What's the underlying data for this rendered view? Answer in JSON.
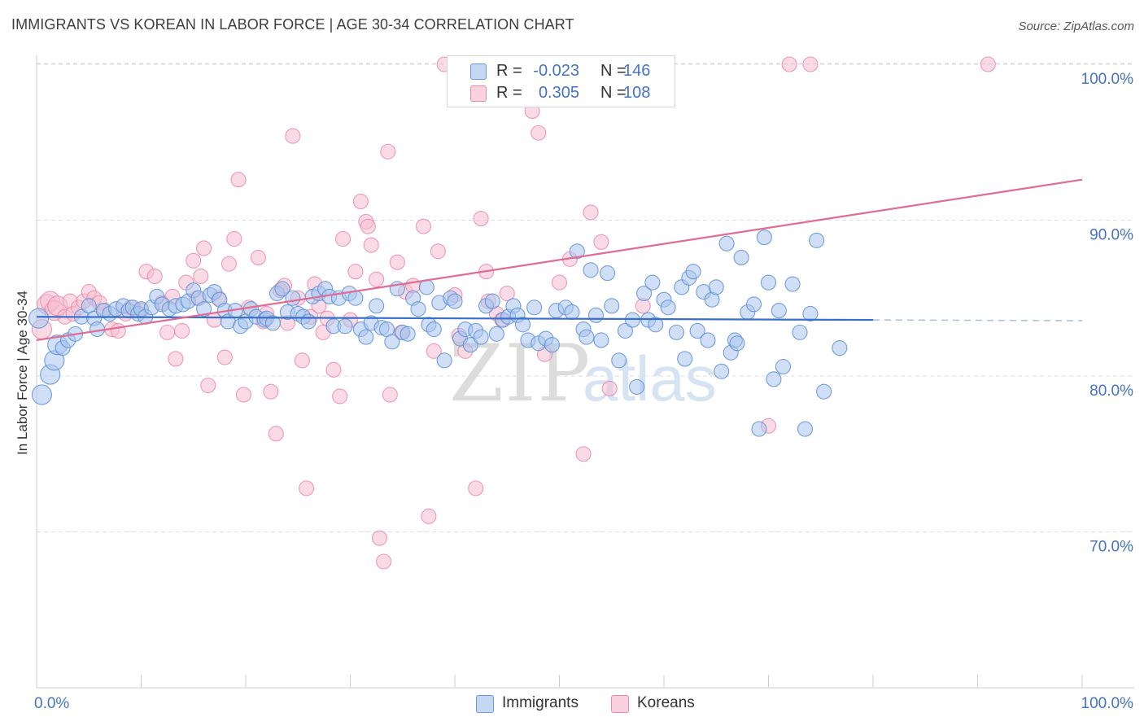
{
  "header": {
    "title": "IMMIGRANTS VS KOREAN IN LABOR FORCE | AGE 30-34 CORRELATION CHART",
    "source": "Source: ZipAtlas.com"
  },
  "legend_top": {
    "rows": [
      {
        "r_label": "R =",
        "r_value": "-0.023",
        "n_label": "N =",
        "n_value": "146"
      },
      {
        "r_label": "R =",
        "r_value": "0.305",
        "n_label": "N =",
        "n_value": "108"
      }
    ]
  },
  "legend_bottom": {
    "items": [
      {
        "label": "Immigrants"
      },
      {
        "label": "Koreans"
      }
    ]
  },
  "watermark": {
    "zip": "ZIP",
    "atlas": "atlas"
  },
  "chart_data": {
    "type": "scatter",
    "title": "IMMIGRANTS VS KOREAN IN LABOR FORCE | AGE 30-34 CORRELATION CHART",
    "xlabel": "",
    "ylabel": "In Labor Force | Age 30-34",
    "xlim": [
      0,
      100
    ],
    "ylim": [
      61.5,
      101.5
    ],
    "x_tick_labels": [
      "0.0%",
      "100.0%"
    ],
    "y_ticks": [
      70,
      80,
      90,
      100
    ],
    "y_tick_labels": [
      "70.0%",
      "80.0%",
      "90.0%",
      "100.0%"
    ],
    "grid": true,
    "legend_position": "top-center",
    "colors": {
      "immigrants_fill": "#a9c4ec",
      "immigrants_stroke": "#5b8fd8",
      "immigrants_line": "#3a6fc8",
      "koreans_fill": "#f6bdd0",
      "koreans_stroke": "#e98aa9",
      "koreans_line": "#e06b93",
      "tick_label": "#4472c4",
      "grid": "#dddddd"
    },
    "series": [
      {
        "name": "Immigrants",
        "r": -0.023,
        "n": 146,
        "trend": {
          "x": [
            0,
            80
          ],
          "y": [
            83.8,
            83.6
          ],
          "dashed_to": 100
        },
        "points": [
          [
            0.5,
            78.8
          ],
          [
            1.3,
            80.1
          ],
          [
            1.7,
            81
          ],
          [
            2,
            82
          ],
          [
            2.5,
            81.8
          ],
          [
            3,
            82.3
          ],
          [
            3.7,
            82.7
          ],
          [
            4.3,
            83.8
          ],
          [
            5,
            84.5
          ],
          [
            5.5,
            83.7
          ],
          [
            5.8,
            83
          ],
          [
            6.4,
            84.2
          ],
          [
            7,
            84
          ],
          [
            7.6,
            84.3
          ],
          [
            8.3,
            84.5
          ],
          [
            8.8,
            84.2
          ],
          [
            9.2,
            84.4
          ],
          [
            9.7,
            84
          ],
          [
            10,
            84.3
          ],
          [
            10.4,
            83.8
          ],
          [
            11,
            84.4
          ],
          [
            11.5,
            85.1
          ],
          [
            12,
            84.6
          ],
          [
            12.7,
            84.3
          ],
          [
            13.3,
            84.5
          ],
          [
            14,
            84.6
          ],
          [
            14.5,
            84.8
          ],
          [
            15,
            85.5
          ],
          [
            15.5,
            85
          ],
          [
            16,
            84.3
          ],
          [
            16.6,
            85.2
          ],
          [
            17,
            85.4
          ],
          [
            17.5,
            84.9
          ],
          [
            18,
            84.2
          ],
          [
            18.3,
            83.5
          ],
          [
            19,
            84.2
          ],
          [
            19.5,
            83.2
          ],
          [
            20,
            83.5
          ],
          [
            20.5,
            84.3
          ],
          [
            21,
            83.8
          ],
          [
            21.8,
            83.6
          ],
          [
            22,
            83.7
          ],
          [
            22.6,
            83.4
          ],
          [
            23,
            85.3
          ],
          [
            23.5,
            85.6
          ],
          [
            24,
            84.1
          ],
          [
            24.5,
            85
          ],
          [
            25,
            84
          ],
          [
            25.5,
            83.8
          ],
          [
            26,
            83.5
          ],
          [
            26.4,
            85.1
          ],
          [
            27,
            85.3
          ],
          [
            27.6,
            85.6
          ],
          [
            28,
            85.1
          ],
          [
            28.4,
            83.2
          ],
          [
            28.9,
            85
          ],
          [
            29.5,
            83.2
          ],
          [
            29.9,
            85.3
          ],
          [
            30.5,
            85
          ],
          [
            31,
            83
          ],
          [
            31.5,
            82.5
          ],
          [
            32,
            83.4
          ],
          [
            32.5,
            84.5
          ],
          [
            33,
            83.1
          ],
          [
            33.5,
            83
          ],
          [
            34,
            82.2
          ],
          [
            34.5,
            85.6
          ],
          [
            35,
            82.8
          ],
          [
            35.5,
            82.7
          ],
          [
            36,
            85
          ],
          [
            36.5,
            84.3
          ],
          [
            37.3,
            85.7
          ],
          [
            37.5,
            83.3
          ],
          [
            38,
            83
          ],
          [
            38.5,
            84.7
          ],
          [
            39,
            81
          ],
          [
            39.6,
            85
          ],
          [
            40,
            84.8
          ],
          [
            40.5,
            82.4
          ],
          [
            41,
            83
          ],
          [
            41.5,
            82
          ],
          [
            42,
            82.9
          ],
          [
            42.5,
            82.5
          ],
          [
            43,
            84.5
          ],
          [
            43.6,
            84.8
          ],
          [
            44,
            82.7
          ],
          [
            44.6,
            83.6
          ],
          [
            45.1,
            83.8
          ],
          [
            45.6,
            84.5
          ],
          [
            46,
            83.9
          ],
          [
            46.5,
            83.3
          ],
          [
            47,
            82.3
          ],
          [
            47.6,
            84.4
          ],
          [
            48,
            82.1
          ],
          [
            48.7,
            82.4
          ],
          [
            49.3,
            82
          ],
          [
            49.7,
            84.2
          ],
          [
            50.6,
            84.4
          ],
          [
            51.2,
            84.1
          ],
          [
            51.7,
            88
          ],
          [
            52.3,
            83
          ],
          [
            52.6,
            82.5
          ],
          [
            53,
            86.8
          ],
          [
            53.5,
            83.9
          ],
          [
            54,
            82.3
          ],
          [
            54.6,
            86.6
          ],
          [
            55,
            84.5
          ],
          [
            55.7,
            81
          ],
          [
            56.3,
            82.9
          ],
          [
            57,
            83.6
          ],
          [
            57.4,
            79.3
          ],
          [
            58.1,
            85.3
          ],
          [
            58.5,
            83.6
          ],
          [
            58.9,
            86
          ],
          [
            59.2,
            83.3
          ],
          [
            60,
            84.9
          ],
          [
            60.4,
            84.4
          ],
          [
            61.2,
            82.8
          ],
          [
            61.7,
            85.7
          ],
          [
            62,
            81.1
          ],
          [
            62.4,
            86.3
          ],
          [
            62.8,
            86.7
          ],
          [
            63.2,
            82.9
          ],
          [
            63.8,
            85.4
          ],
          [
            64.2,
            82.3
          ],
          [
            64.6,
            84.9
          ],
          [
            65,
            85.7
          ],
          [
            65.5,
            80.3
          ],
          [
            66,
            88.5
          ],
          [
            66.4,
            81.5
          ],
          [
            66.8,
            82.3
          ],
          [
            67,
            82.1
          ],
          [
            67.4,
            87.6
          ],
          [
            68,
            84.1
          ],
          [
            68.6,
            84.6
          ],
          [
            69.1,
            76.6
          ],
          [
            69.6,
            88.9
          ],
          [
            70,
            86
          ],
          [
            70.5,
            79.8
          ],
          [
            71,
            84.2
          ],
          [
            71.4,
            80.6
          ],
          [
            72.3,
            85.9
          ],
          [
            73,
            82.8
          ],
          [
            73.5,
            76.6
          ],
          [
            74,
            84
          ],
          [
            74.6,
            88.7
          ],
          [
            75.3,
            79
          ],
          [
            76.8,
            81.8
          ],
          [
            0.2,
            83.7
          ]
        ]
      },
      {
        "name": "Koreans",
        "r": 0.305,
        "n": 108,
        "trend": {
          "x": [
            0,
            100
          ],
          "y": [
            82.3,
            92.6
          ]
        },
        "points": [
          [
            0.5,
            83
          ],
          [
            1,
            84.6
          ],
          [
            1.3,
            84.8
          ],
          [
            1.7,
            84.2
          ],
          [
            2,
            84.5
          ],
          [
            2.7,
            83.8
          ],
          [
            3.2,
            84.8
          ],
          [
            3.5,
            84
          ],
          [
            4,
            84.4
          ],
          [
            4.5,
            84.8
          ],
          [
            5,
            85.4
          ],
          [
            5.5,
            85
          ],
          [
            6,
            84.7
          ],
          [
            6.5,
            84.2
          ],
          [
            7.2,
            83
          ],
          [
            7.8,
            82.9
          ],
          [
            8.5,
            84
          ],
          [
            9,
            84.4
          ],
          [
            10,
            84.2
          ],
          [
            10.5,
            86.7
          ],
          [
            11.3,
            86.4
          ],
          [
            12,
            84.7
          ],
          [
            12.5,
            82.8
          ],
          [
            13,
            85.1
          ],
          [
            13.3,
            81.1
          ],
          [
            13.9,
            82.9
          ],
          [
            14.3,
            86
          ],
          [
            15,
            87.4
          ],
          [
            15.3,
            85
          ],
          [
            15.7,
            86.4
          ],
          [
            16,
            88.2
          ],
          [
            16.4,
            79.4
          ],
          [
            17,
            83.6
          ],
          [
            17.4,
            85
          ],
          [
            18,
            81.2
          ],
          [
            18.4,
            87.2
          ],
          [
            18.9,
            88.8
          ],
          [
            19.3,
            92.6
          ],
          [
            19.8,
            78.8
          ],
          [
            20.3,
            84.4
          ],
          [
            21.2,
            87.6
          ],
          [
            21.7,
            83.5
          ],
          [
            22,
            84
          ],
          [
            22.4,
            79
          ],
          [
            22.9,
            76.3
          ],
          [
            23.3,
            85.5
          ],
          [
            23.7,
            85.8
          ],
          [
            24,
            83.4
          ],
          [
            24.5,
            95.4
          ],
          [
            25,
            85
          ],
          [
            25.4,
            81
          ],
          [
            25.8,
            72.8
          ],
          [
            26.2,
            83.8
          ],
          [
            26.6,
            85.9
          ],
          [
            27,
            84.5
          ],
          [
            27.4,
            82.8
          ],
          [
            27.8,
            83.7
          ],
          [
            28.4,
            80.4
          ],
          [
            29,
            78.7
          ],
          [
            29.3,
            88.8
          ],
          [
            30,
            83.6
          ],
          [
            30.5,
            86.7
          ],
          [
            31,
            91.2
          ],
          [
            31.5,
            89.9
          ],
          [
            31.7,
            89.6
          ],
          [
            32,
            88.4
          ],
          [
            32.5,
            86.2
          ],
          [
            32.8,
            69.6
          ],
          [
            33.2,
            68.1
          ],
          [
            33.6,
            94.4
          ],
          [
            33.8,
            78.8
          ],
          [
            34.5,
            87.3
          ],
          [
            34.9,
            82.8
          ],
          [
            35.3,
            85.4
          ],
          [
            36,
            85.8
          ],
          [
            37,
            89.6
          ],
          [
            37.5,
            71
          ],
          [
            38,
            81.6
          ],
          [
            38.4,
            88
          ],
          [
            39,
            100
          ],
          [
            40,
            85.2
          ],
          [
            40.4,
            82.6
          ],
          [
            41,
            81.6
          ],
          [
            42,
            72.8
          ],
          [
            42.5,
            90.1
          ],
          [
            43,
            86.7
          ],
          [
            43.2,
            84.8
          ],
          [
            44,
            84
          ],
          [
            44.5,
            83.6
          ],
          [
            45,
            85.3
          ],
          [
            46.5,
            97.8
          ],
          [
            47,
            98.2
          ],
          [
            47.4,
            97
          ],
          [
            48,
            95.6
          ],
          [
            48.6,
            81.4
          ],
          [
            50,
            86
          ],
          [
            51,
            87.5
          ],
          [
            52.3,
            75
          ],
          [
            53,
            90.5
          ],
          [
            54,
            88.6
          ],
          [
            54.8,
            79.2
          ],
          [
            56.5,
            100
          ],
          [
            58,
            84.5
          ],
          [
            70,
            76.8
          ],
          [
            72,
            100
          ],
          [
            74,
            100
          ],
          [
            91,
            100
          ]
        ]
      }
    ]
  }
}
